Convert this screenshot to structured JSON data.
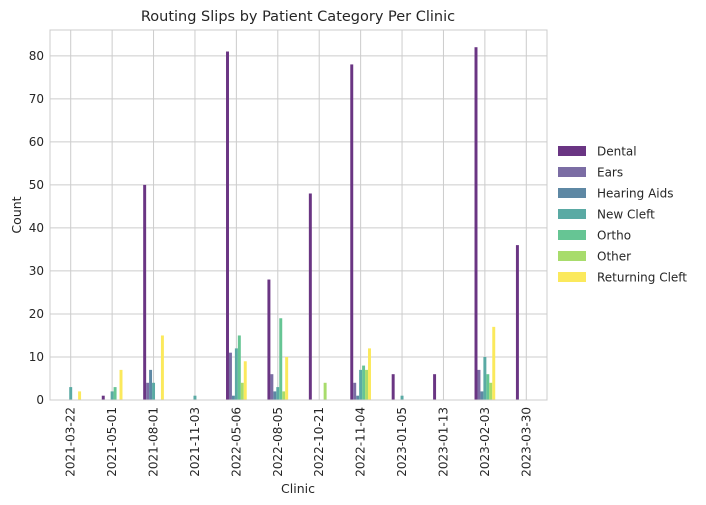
{
  "chart_data": {
    "type": "bar",
    "title": "Routing Slips by Patient Category Per Clinic",
    "xlabel": "Clinic",
    "ylabel": "Count",
    "ylim": [
      0,
      86
    ],
    "yticks": [
      0,
      10,
      20,
      30,
      40,
      50,
      60,
      70,
      80
    ],
    "grid": true,
    "legend_position": "right",
    "categories": [
      "2021-03-22",
      "2021-05-01",
      "2021-08-01",
      "2021-11-03",
      "2022-05-06",
      "2022-08-05",
      "2022-10-21",
      "2022-11-04",
      "2023-01-05",
      "2023-01-13",
      "2023-02-03",
      "2023-03-30"
    ],
    "series": [
      {
        "name": "Dental",
        "color": "#6a3583",
        "values": [
          0,
          1,
          50,
          0,
          81,
          28,
          48,
          78,
          6,
          6,
          82,
          36
        ]
      },
      {
        "name": "Ears",
        "color": "#7b6da4",
        "values": [
          0,
          0,
          4,
          0,
          11,
          6,
          0,
          4,
          0,
          0,
          7,
          0
        ]
      },
      {
        "name": "Hearing Aids",
        "color": "#5e88a4",
        "values": [
          0,
          0,
          7,
          0,
          1,
          2,
          0,
          1,
          0,
          0,
          2,
          0
        ]
      },
      {
        "name": "New Cleft",
        "color": "#5aaaa4",
        "values": [
          3,
          2,
          4,
          1,
          12,
          3,
          0,
          7,
          1,
          0,
          10,
          0
        ]
      },
      {
        "name": "Ortho",
        "color": "#66c594",
        "values": [
          0,
          3,
          0,
          0,
          15,
          19,
          0,
          8,
          0,
          0,
          6,
          0
        ]
      },
      {
        "name": "Other",
        "color": "#a8dc6c",
        "values": [
          0,
          0,
          0,
          0,
          4,
          2,
          4,
          7,
          0,
          0,
          4,
          0
        ]
      },
      {
        "name": "Returning Cleft",
        "color": "#fbe95c",
        "values": [
          2,
          7,
          15,
          0,
          9,
          10,
          0,
          12,
          0,
          0,
          17,
          0
        ]
      }
    ]
  }
}
